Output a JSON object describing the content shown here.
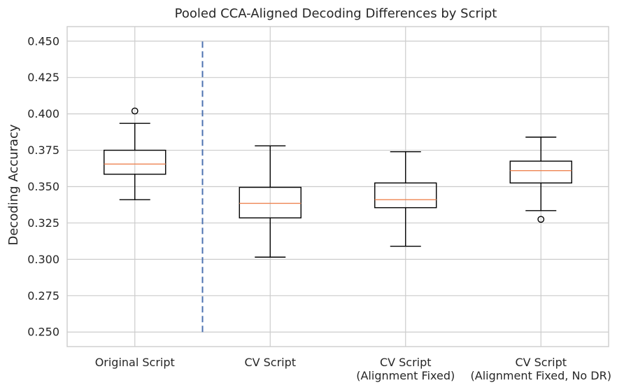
{
  "chart_data": {
    "type": "box",
    "title": "Pooled CCA-Aligned Decoding Differences by Script",
    "ylabel": "Decoding Accuracy",
    "xlabel": "",
    "ylim": [
      0.24,
      0.46
    ],
    "yticks": [
      0.25,
      0.275,
      0.3,
      0.325,
      0.35,
      0.375,
      0.4,
      0.425,
      0.45
    ],
    "ytick_labels": [
      "0.250",
      "0.275",
      "0.300",
      "0.325",
      "0.350",
      "0.375",
      "0.400",
      "0.425",
      "0.450"
    ],
    "grid": true,
    "categories": [
      [
        "Original Script"
      ],
      [
        "CV Script"
      ],
      [
        "CV Script",
        "(Alignment Fixed)"
      ],
      [
        "CV Script",
        "(Alignment Fixed, No DR)"
      ]
    ],
    "boxes": [
      {
        "whisker_low": 0.341,
        "q1": 0.3585,
        "median": 0.3655,
        "q3": 0.375,
        "whisker_high": 0.3935,
        "fliers": [
          0.402
        ]
      },
      {
        "whisker_low": 0.3015,
        "q1": 0.3285,
        "median": 0.3385,
        "q3": 0.3495,
        "whisker_high": 0.378,
        "fliers": []
      },
      {
        "whisker_low": 0.309,
        "q1": 0.3355,
        "median": 0.341,
        "q3": 0.3525,
        "whisker_high": 0.374,
        "fliers": []
      },
      {
        "whisker_low": 0.3335,
        "q1": 0.3525,
        "median": 0.361,
        "q3": 0.3675,
        "whisker_high": 0.384,
        "fliers": [
          0.3275
        ]
      }
    ],
    "divider": {
      "x_position": 1.5,
      "y_range": [
        0.25,
        0.45
      ]
    },
    "colors": {
      "box": "#000000",
      "median": "#ee8452",
      "divider": "#4c72b0",
      "grid": "#cccccc"
    }
  }
}
